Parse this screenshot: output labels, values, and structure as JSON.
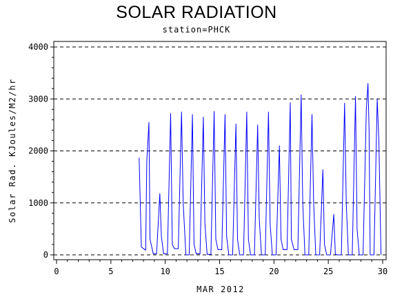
{
  "chart_data": {
    "type": "line",
    "title": "SOLAR RADIATION",
    "subtitle": "station=PHCK",
    "xlabel": "MAR 2012",
    "ylabel": "Solar Rad. KJoules/M2/hr",
    "xlim": [
      0,
      30
    ],
    "ylim": [
      0,
      4000
    ],
    "x_ticks": [
      0,
      5,
      10,
      15,
      20,
      25,
      30
    ],
    "y_ticks": [
      0,
      1000,
      2000,
      3000,
      4000
    ],
    "grid": "dashed-horizontal",
    "series": [
      {
        "color": "#0000ff",
        "x": [
          7.6,
          7.8,
          8.2,
          8.3,
          8.5,
          8.6,
          8.9,
          9.2,
          9.5,
          9.65,
          9.85,
          10.2,
          10.5,
          10.65,
          10.85,
          11.2,
          11.5,
          11.65,
          11.9,
          12.2,
          12.5,
          12.65,
          12.85,
          13.2,
          13.5,
          13.65,
          13.85,
          14.2,
          14.5,
          14.65,
          14.85,
          15.2,
          15.5,
          15.65,
          15.85,
          16.2,
          16.5,
          16.65,
          16.85,
          17.2,
          17.5,
          17.65,
          17.85,
          18.2,
          18.5,
          18.65,
          18.85,
          19.2,
          19.5,
          19.65,
          19.85,
          20.2,
          20.5,
          20.65,
          20.85,
          21.2,
          21.5,
          21.6,
          21.85,
          22.2,
          22.5,
          22.65,
          22.85,
          23.2,
          23.5,
          23.65,
          23.85,
          24.2,
          24.5,
          24.65,
          24.85,
          25.2,
          25.5,
          25.65,
          25.85,
          26.2,
          26.5,
          26.65,
          26.85,
          27.2,
          27.5,
          27.65,
          27.85,
          28.2,
          28.5,
          28.65,
          28.75,
          28.85,
          29.2,
          29.5,
          29.65,
          29.85
        ],
        "y": [
          1870,
          150,
          90,
          1800,
          2550,
          300,
          20,
          20,
          1180,
          350,
          20,
          20,
          2720,
          200,
          120,
          120,
          2750,
          1000,
          0,
          0,
          2700,
          200,
          20,
          20,
          2650,
          600,
          10,
          10,
          2760,
          300,
          100,
          100,
          2700,
          350,
          0,
          0,
          2520,
          300,
          0,
          0,
          2750,
          300,
          0,
          0,
          2500,
          700,
          0,
          0,
          2750,
          600,
          0,
          0,
          2100,
          300,
          100,
          100,
          2930,
          300,
          100,
          100,
          3080,
          1000,
          0,
          0,
          2700,
          1000,
          0,
          0,
          1640,
          200,
          0,
          0,
          780,
          10,
          0,
          0,
          2920,
          1000,
          0,
          0,
          3050,
          500,
          0,
          0,
          2800,
          3300,
          2400,
          0,
          0,
          3000,
          2200,
          0
        ]
      }
    ]
  }
}
